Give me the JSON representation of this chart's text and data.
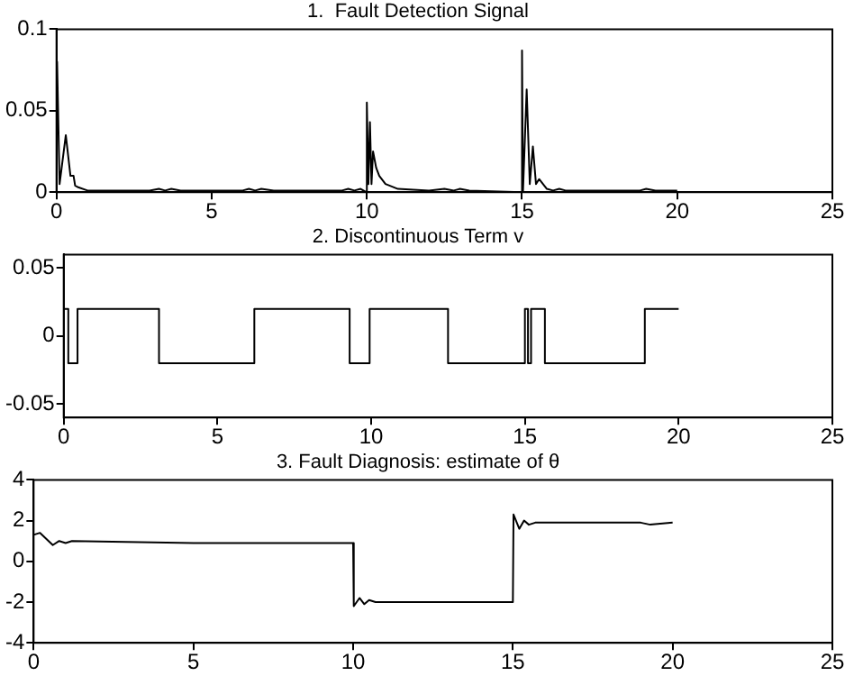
{
  "chart_data": [
    {
      "type": "line",
      "title": "1.  Fault Detection Signal",
      "xlim": [
        0,
        25
      ],
      "xticks": [
        0,
        5,
        10,
        15,
        20,
        25
      ],
      "ylim": [
        0,
        0.1
      ],
      "yticks": [
        0,
        0.05,
        0.1
      ],
      "series": [
        {
          "color": "#000000",
          "x": [
            0,
            0.02,
            0.1,
            0.3,
            0.45,
            0.55,
            0.6,
            0.7,
            1,
            1.5,
            3,
            3.3,
            3.5,
            3.7,
            4,
            6,
            6.2,
            6.4,
            6.6,
            7,
            9.2,
            9.4,
            9.6,
            9.8,
            9.98,
            10,
            10.05,
            10.1,
            10.15,
            10.2,
            10.3,
            10.4,
            10.6,
            11,
            12,
            12.5,
            12.8,
            13,
            13.3,
            14.98,
            15,
            15.03,
            15.15,
            15.25,
            15.35,
            15.45,
            15.55,
            15.8,
            16,
            16.2,
            16.4,
            18.8,
            19,
            19.3,
            19.5,
            20
          ],
          "values": [
            0.06,
            0.08,
            0.005,
            0.035,
            0.01,
            0.01,
            0.004,
            0.003,
            0.001,
            0.001,
            0.001,
            0.002,
            0.001,
            0.002,
            0.001,
            0.001,
            0.002,
            0.001,
            0.002,
            0.001,
            0.001,
            0.002,
            0.001,
            0.002,
            0,
            0.055,
            0.005,
            0.043,
            0.005,
            0.025,
            0.015,
            0.01,
            0.005,
            0.002,
            0.001,
            0.002,
            0.001,
            0.002,
            0.001,
            0,
            0.087,
            0,
            0.063,
            0.005,
            0.028,
            0.005,
            0.008,
            0.002,
            0.001,
            0.002,
            0.001,
            0.001,
            0.002,
            0.001,
            0.001,
            0.001
          ]
        }
      ]
    },
    {
      "type": "line",
      "title": "2. Discontinuous Term v",
      "xlim": [
        0,
        25
      ],
      "xticks": [
        0,
        5,
        10,
        15,
        20,
        25
      ],
      "ylim": [
        -0.06,
        0.06
      ],
      "yticks": [
        -0.05,
        0,
        0.05
      ],
      "series": [
        {
          "color": "#000000",
          "x": [
            0,
            0.15,
            0.15,
            0.45,
            0.45,
            3.1,
            3.1,
            6.2,
            6.2,
            9.3,
            9.3,
            9.95,
            9.95,
            12.5,
            12.5,
            15,
            15,
            15.1,
            15.1,
            15.2,
            15.2,
            15.65,
            15.65,
            18.9,
            18.9,
            20
          ],
          "values": [
            0.02,
            0.02,
            -0.02,
            -0.02,
            0.02,
            0.02,
            -0.02,
            -0.02,
            0.02,
            0.02,
            -0.02,
            -0.02,
            0.02,
            0.02,
            -0.02,
            -0.02,
            0.02,
            0.02,
            -0.02,
            -0.02,
            0.02,
            0.02,
            -0.02,
            -0.02,
            0.02,
            0.02
          ]
        }
      ]
    },
    {
      "type": "line",
      "title": "3. Fault Diagnosis: estimate of θ",
      "xlim": [
        0,
        25
      ],
      "xticks": [
        0,
        5,
        10,
        15,
        20,
        25
      ],
      "ylim": [
        -4,
        4
      ],
      "yticks": [
        -4,
        -2,
        0,
        2,
        4
      ],
      "series": [
        {
          "color": "#000000",
          "x": [
            0,
            0.2,
            0.4,
            0.6,
            0.8,
            1,
            1.2,
            5,
            10,
            10.02,
            10.2,
            10.35,
            10.5,
            10.7,
            15,
            15.02,
            15.2,
            15.35,
            15.5,
            15.7,
            19,
            19.3,
            20
          ],
          "values": [
            1.3,
            1.4,
            1.1,
            0.8,
            1,
            0.9,
            1,
            0.9,
            0.9,
            -2.2,
            -1.8,
            -2.1,
            -1.9,
            -2,
            -2,
            2.3,
            1.6,
            2,
            1.8,
            1.9,
            1.9,
            1.8,
            1.9
          ]
        }
      ]
    }
  ]
}
